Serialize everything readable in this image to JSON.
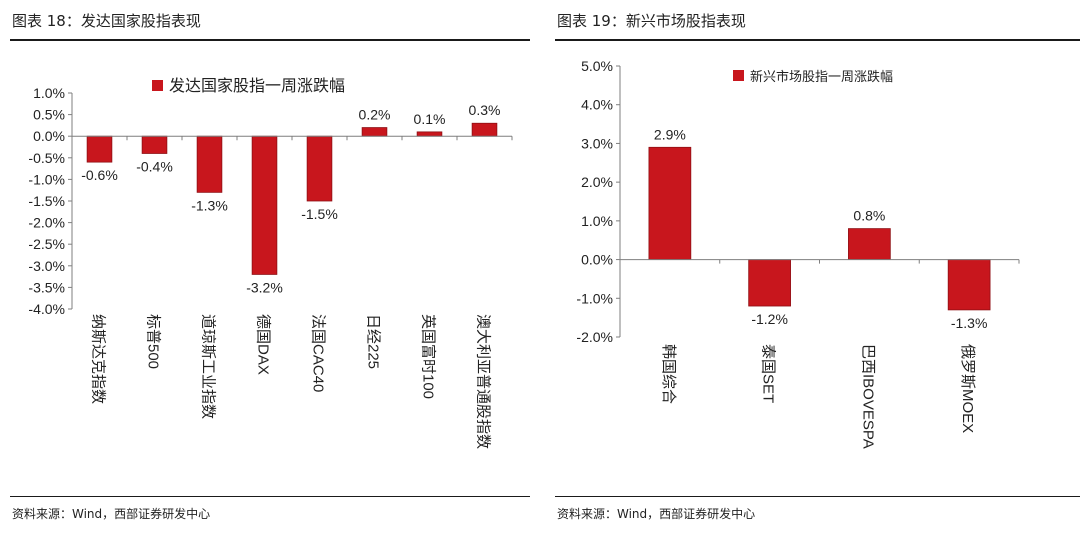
{
  "colors": {
    "bar": "#c8161d",
    "bar_dark": "#8f0f14",
    "axis": "#7f7f7f",
    "text": "#222222"
  },
  "chart_data": [
    {
      "type": "bar",
      "figure_title": "图表 18：发达国家股指表现",
      "legend": "发达国家股指一周涨跌幅",
      "categories": [
        "纳斯达克指数",
        "标普500",
        "道琼斯工业指数",
        "德国DAX",
        "法国CAC40",
        "日经225",
        "英国富时100",
        "澳大利亚普通股指数"
      ],
      "values": [
        -0.6,
        -0.4,
        -1.3,
        -3.2,
        -1.5,
        0.2,
        0.1,
        0.3
      ],
      "data_labels": [
        "-0.6%",
        "-0.4%",
        "-1.3%",
        "-3.2%",
        "-1.5%",
        "0.2%",
        "0.1%",
        "0.3%"
      ],
      "ylim": [
        -4.0,
        1.0
      ],
      "yticks": [
        "1.0%",
        "0.5%",
        "0.0%",
        "-0.5%",
        "-1.0%",
        "-1.5%",
        "-2.0%",
        "-2.5%",
        "-3.0%",
        "-3.5%",
        "-4.0%"
      ],
      "source": "资料来源：Wind，西部证券研发中心"
    },
    {
      "type": "bar",
      "figure_title": "图表 19：新兴市场股指表现",
      "legend": "新兴市场股指一周涨跌幅",
      "categories": [
        "韩国综合",
        "泰国SET",
        "巴西IBOVESPA",
        "俄罗斯MOEX"
      ],
      "values": [
        2.9,
        -1.2,
        0.8,
        -1.3
      ],
      "data_labels": [
        "2.9%",
        "-1.2%",
        "0.8%",
        "-1.3%"
      ],
      "ylim": [
        -2.0,
        5.0
      ],
      "yticks": [
        "5.0%",
        "4.0%",
        "3.0%",
        "2.0%",
        "1.0%",
        "0.0%",
        "-1.0%",
        "-2.0%"
      ],
      "source": "资料来源：Wind，西部证券研发中心"
    }
  ]
}
